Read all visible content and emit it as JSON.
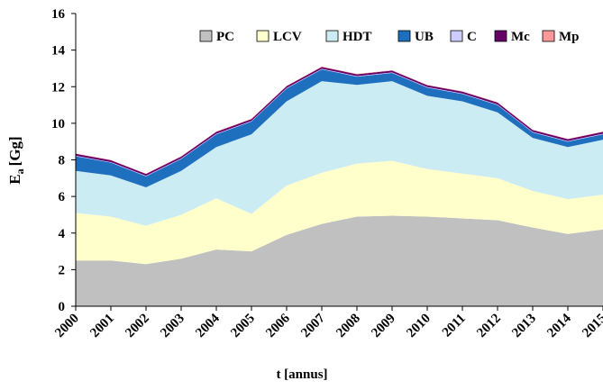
{
  "chart_data": {
    "type": "stacked_area",
    "xlabel": "t [annus]",
    "ylabel": "E",
    "ylabel_sub": "a",
    "ylabel_unit": "[Gg]",
    "x": [
      2000,
      2001,
      2002,
      2003,
      2004,
      2005,
      2006,
      2007,
      2008,
      2009,
      2010,
      2011,
      2012,
      2013,
      2014,
      2015
    ],
    "xlim": [
      2000,
      2015
    ],
    "xticks": [
      2000,
      2001,
      2002,
      2003,
      2004,
      2005,
      2006,
      2007,
      2008,
      2009,
      2010,
      2011,
      2012,
      2013,
      2014,
      2015
    ],
    "ylim": [
      0,
      16
    ],
    "yticks": [
      0,
      2,
      4,
      6,
      8,
      10,
      12,
      14,
      16
    ],
    "legend_position": "top-right",
    "series": [
      {
        "name": "PC",
        "color": "#c0c0c0",
        "values": [
          2.5,
          2.5,
          2.3,
          2.6,
          3.1,
          3.0,
          3.9,
          4.5,
          4.9,
          4.95,
          4.9,
          4.8,
          4.7,
          4.3,
          3.95,
          4.2
        ]
      },
      {
        "name": "LCV",
        "color": "#ffffcc",
        "values": [
          2.6,
          2.4,
          2.1,
          2.4,
          2.8,
          2.05,
          2.7,
          2.8,
          2.9,
          3.0,
          2.6,
          2.45,
          2.3,
          2.0,
          1.9,
          1.9
        ]
      },
      {
        "name": "HDT",
        "color": "#ccecf4",
        "values": [
          2.3,
          2.25,
          2.1,
          2.4,
          2.8,
          4.35,
          4.6,
          5.0,
          4.3,
          4.35,
          4.0,
          3.95,
          3.6,
          2.9,
          2.85,
          3.0
        ]
      },
      {
        "name": "UB",
        "color": "#1f6fbf",
        "values": [
          0.8,
          0.7,
          0.6,
          0.65,
          0.7,
          0.7,
          0.7,
          0.65,
          0.45,
          0.45,
          0.45,
          0.4,
          0.4,
          0.3,
          0.3,
          0.3
        ]
      },
      {
        "name": "C",
        "color": "#ccccff",
        "values": [
          0.03,
          0.03,
          0.03,
          0.03,
          0.03,
          0.03,
          0.03,
          0.03,
          0.03,
          0.03,
          0.03,
          0.03,
          0.03,
          0.03,
          0.03,
          0.03
        ]
      },
      {
        "name": "Mc",
        "color": "#660066",
        "values": [
          0.1,
          0.1,
          0.1,
          0.1,
          0.1,
          0.1,
          0.1,
          0.1,
          0.1,
          0.1,
          0.1,
          0.1,
          0.1,
          0.1,
          0.1,
          0.1
        ]
      },
      {
        "name": "Mp",
        "color": "#ff9999",
        "values": [
          0.02,
          0.02,
          0.02,
          0.02,
          0.02,
          0.02,
          0.02,
          0.02,
          0.02,
          0.02,
          0.02,
          0.02,
          0.02,
          0.02,
          0.02,
          0.02
        ]
      }
    ]
  }
}
